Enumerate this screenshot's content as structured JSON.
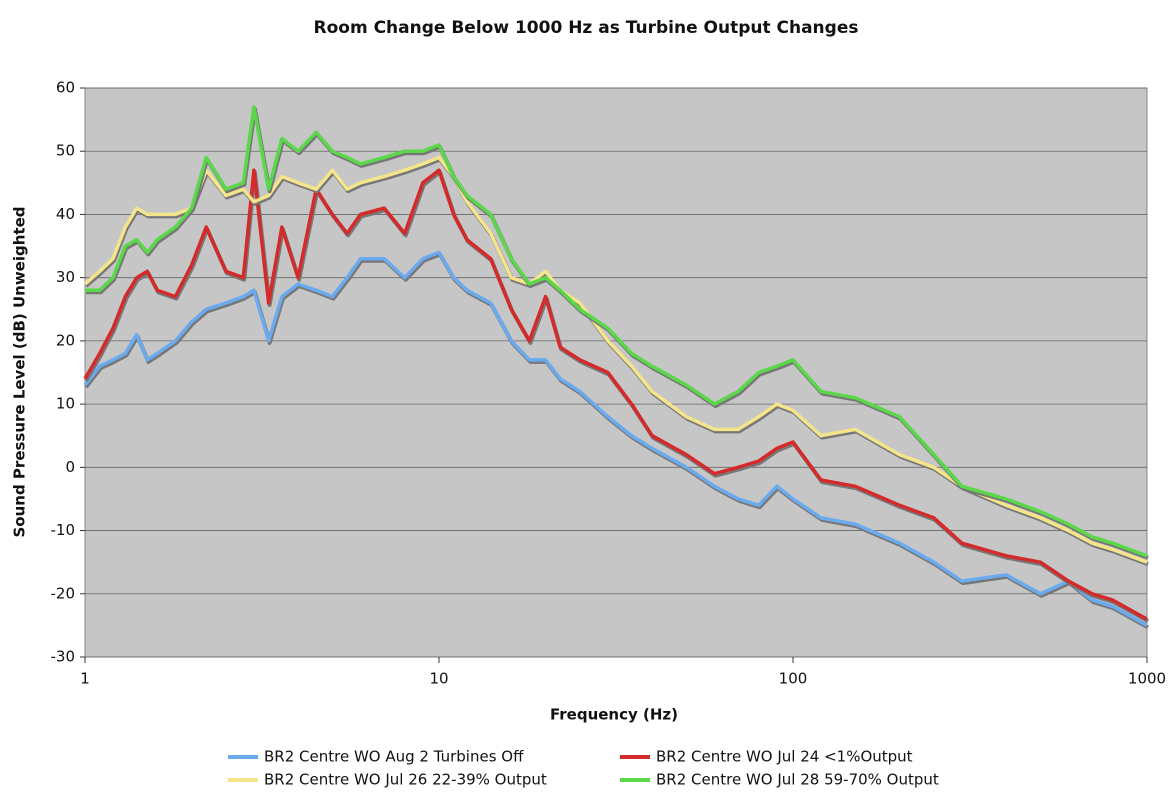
{
  "chart_data": {
    "type": "line",
    "title": "Room Change Below 1000 Hz as Turbine Output Changes",
    "x_label": "Frequency (Hz)",
    "y_label": "Sound Pressure Level (dB) Unweighted",
    "log_x": true,
    "grid": true,
    "background": "#c6c6c6",
    "xlim": [
      1,
      1000
    ],
    "xticks": [
      1,
      10,
      100,
      1000
    ],
    "ylim": [
      -30,
      60
    ],
    "yticks": [
      -30,
      -20,
      -10,
      0,
      10,
      20,
      30,
      40,
      50,
      60
    ],
    "x": [
      1,
      1.1,
      1.2,
      1.3,
      1.4,
      1.5,
      1.6,
      1.8,
      2,
      2.2,
      2.5,
      2.8,
      3,
      3.3,
      3.6,
      4,
      4.5,
      5,
      5.5,
      6,
      7,
      8,
      9,
      10,
      11,
      12,
      14,
      16,
      18,
      20,
      22,
      25,
      30,
      35,
      40,
      50,
      60,
      70,
      80,
      90,
      100,
      120,
      150,
      200,
      250,
      300,
      400,
      500,
      600,
      700,
      800,
      1000
    ],
    "series": [
      {
        "name": "BR2 Centre WO Aug 2 Turbines Off",
        "color": "#6aaaee",
        "values": [
          13,
          16,
          17,
          18,
          21,
          17,
          18,
          20,
          23,
          25,
          26,
          27,
          28,
          20,
          27,
          29,
          28,
          27,
          30,
          33,
          33,
          30,
          33,
          34,
          30,
          28,
          26,
          20,
          17,
          17,
          14,
          12,
          8,
          5,
          3,
          0,
          -3,
          -5,
          -6,
          -3,
          -5,
          -8,
          -9,
          -12,
          -15,
          -18,
          -17,
          -20,
          -18,
          -21,
          -22,
          -25
        ]
      },
      {
        "name": "BR2 Centre WO Jul 24 <1%Output",
        "color": "#d42a2a",
        "values": [
          14,
          18,
          22,
          27,
          30,
          31,
          28,
          27,
          32,
          38,
          31,
          30,
          47,
          26,
          38,
          30,
          44,
          40,
          37,
          40,
          41,
          37,
          45,
          47,
          40,
          36,
          33,
          25,
          20,
          27,
          19,
          17,
          15,
          10,
          5,
          2,
          -1,
          0,
          1,
          3,
          4,
          -2,
          -3,
          -6,
          -8,
          -12,
          -14,
          -15,
          -18,
          -20,
          -21,
          -24
        ]
      },
      {
        "name": "BR2 Centre WO Jul 26 22-39% Output",
        "color": "#f5e58a",
        "values": [
          29,
          31,
          33,
          38,
          41,
          40,
          40,
          40,
          41,
          47,
          43,
          44,
          42,
          43,
          46,
          45,
          44,
          47,
          44,
          45,
          46,
          47,
          48,
          49,
          46,
          42,
          37,
          30,
          29,
          31,
          28,
          26,
          20,
          16,
          12,
          8,
          6,
          6,
          8,
          10,
          9,
          5,
          6,
          2,
          0,
          -3,
          -6,
          -8,
          -10,
          -12,
          -13,
          -15
        ]
      },
      {
        "name": "BR2 Centre WO Jul 28 59-70% Output",
        "color": "#5ad84a",
        "values": [
          28,
          28,
          30,
          35,
          36,
          34,
          36,
          38,
          41,
          49,
          44,
          45,
          57,
          44,
          52,
          50,
          53,
          50,
          49,
          48,
          49,
          50,
          50,
          51,
          46,
          43,
          40,
          33,
          29,
          30,
          28,
          25,
          22,
          18,
          16,
          13,
          10,
          12,
          15,
          16,
          17,
          12,
          11,
          8,
          2,
          -3,
          -5,
          -7,
          -9,
          -11,
          -12,
          -14
        ]
      }
    ]
  }
}
